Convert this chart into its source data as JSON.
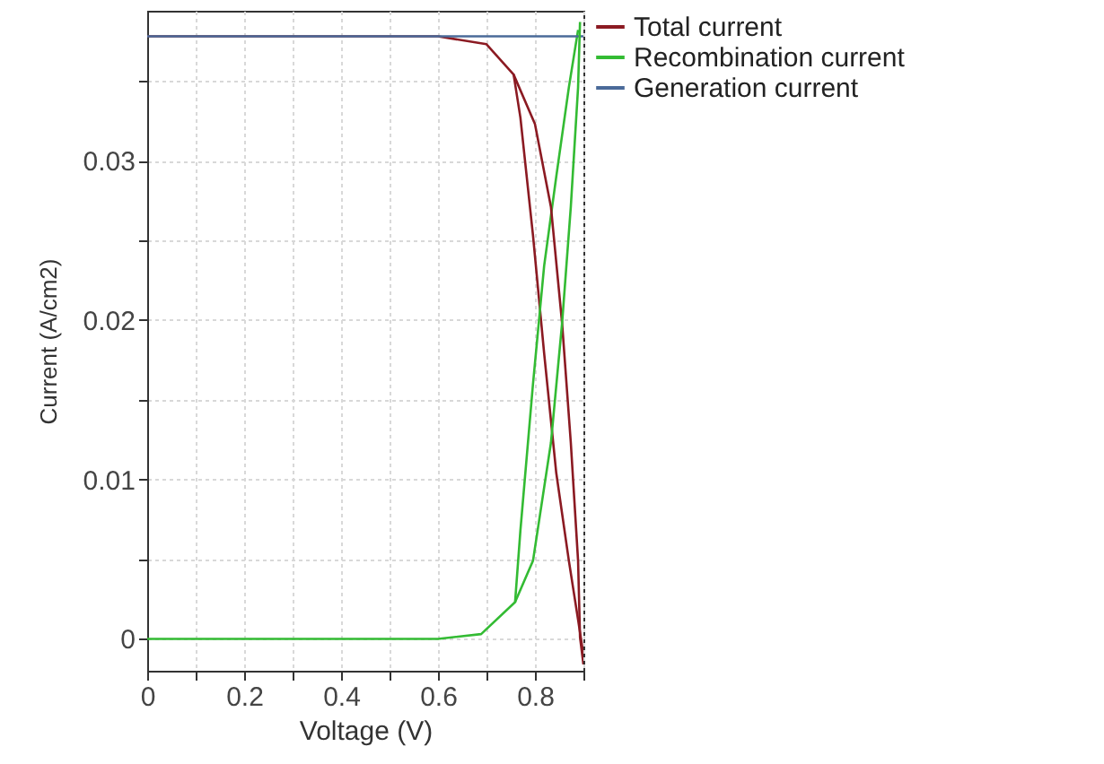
{
  "chart_data": {
    "type": "line",
    "xlabel": "Voltage (V)",
    "ylabel": "Current (A/cm2)",
    "xlim": [
      0,
      0.9
    ],
    "ylim": [
      -0.002,
      0.0394
    ],
    "xticks": [
      0,
      {
        "value": 0.1,
        "label": null
      },
      "0.2",
      {
        "value": 0.3,
        "label": null
      },
      0.4,
      {
        "value": 0.5,
        "label": null
      },
      0.6,
      {
        "value": 0.7,
        "label": null
      },
      0.8,
      {
        "value": 0.9,
        "label": null
      }
    ],
    "yticks": [
      0,
      {
        "value": 0.005,
        "label": null
      },
      0.01,
      {
        "value": 0.015,
        "label": null
      },
      0.02,
      {
        "value": 0.025,
        "label": null
      },
      0.03,
      {
        "value": 0.035,
        "label": null
      }
    ],
    "grid": true,
    "legend": "top right",
    "marker": "none",
    "line_style": "solid",
    "series": [
      {
        "name": "Total current",
        "color": "#8b1a22",
        "x": [
          0,
          0.6,
          0.7,
          0.756,
          0.77,
          0.796,
          0.819,
          0.844,
          0.87,
          0.889,
          0.9
        ],
        "values": [
          0.0378,
          0.0378,
          0.0373,
          0.0354,
          0.0327,
          0.0253,
          0.0179,
          0.0104,
          0.0049,
          0.0012,
          -0.001
        ]
      },
      {
        "name": "Recombination current",
        "color": "#33bb33",
        "x": [
          0,
          0.6,
          0.689,
          0.759,
          0.77,
          0.796,
          0.819,
          0.844,
          0.87,
          0.889
        ],
        "values": [
          0,
          0,
          0.0003,
          0.0023,
          0.0068,
          0.016,
          0.0234,
          0.029,
          0.0346,
          0.0382
        ]
      },
      {
        "name": "Generation current",
        "color": "#4a6a99",
        "x": [
          0,
          0.9
        ],
        "values": [
          0.0378,
          0.0378
        ]
      },
      {
        "color": "#8b1a22",
        "x": [
          0.756,
          0.8,
          0.833,
          0.856,
          0.874,
          0.889,
          0.893,
          0.9
        ],
        "values": [
          0.0354,
          0.0323,
          0.0271,
          0.0198,
          0.0123,
          0.0049,
          0.0001,
          -0.0016
        ]
      },
      {
        "color": "#33bb33",
        "x": [
          0.759,
          0.796,
          0.833,
          0.856,
          0.874,
          0.889,
          0.893
        ],
        "values": [
          0.0023,
          0.0049,
          0.0123,
          0.0198,
          0.0271,
          0.0346,
          0.0387
        ]
      }
    ]
  }
}
